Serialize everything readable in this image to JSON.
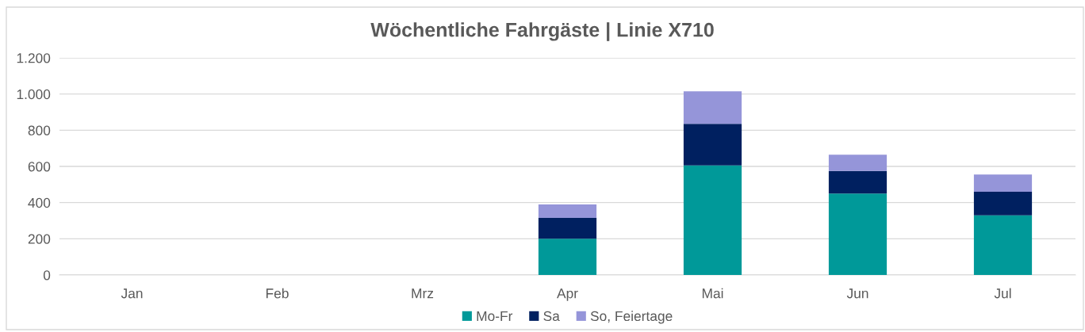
{
  "chart_data": {
    "type": "bar",
    "title": "Wöchentliche Fahrgäste | Linie X710",
    "categories": [
      "Jan",
      "Feb",
      "Mrz",
      "Apr",
      "Mai",
      "Jun",
      "Jul"
    ],
    "series": [
      {
        "name": "Mo-Fr",
        "color": "#009999",
        "values": [
          null,
          null,
          null,
          200,
          605,
          450,
          330
        ]
      },
      {
        "name": "Sa",
        "color": "#002060",
        "values": [
          null,
          null,
          null,
          115,
          230,
          125,
          130
        ]
      },
      {
        "name": "So, Feiertage",
        "color": "#9595d9",
        "values": [
          null,
          null,
          null,
          75,
          180,
          90,
          95
        ]
      }
    ],
    "stacked": true,
    "ylim": [
      0,
      1200
    ],
    "yticks": [
      0,
      200,
      400,
      600,
      800,
      {
        "value": 1000,
        "label": "1.000"
      },
      {
        "value": 1200,
        "label": "1.200"
      }
    ],
    "grid": "y",
    "legend": "bottom"
  }
}
